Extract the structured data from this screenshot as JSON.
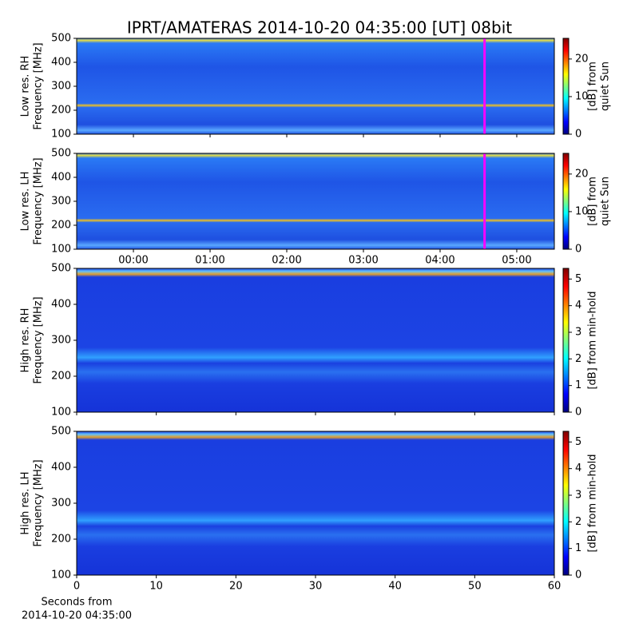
{
  "title": "IPRT/AMATERAS 2014-10-20 04:35:00 [UT]   08bit",
  "chart_data": [
    {
      "type": "spectrogram",
      "ylabel": [
        "Low res. RH",
        "Frequency [MHz]"
      ],
      "ylim": [
        100,
        500
      ],
      "yticks": [
        100,
        200,
        300,
        400,
        500
      ],
      "xlim": [
        -0.74,
        5.49
      ],
      "xticks": [
        {
          "value": 0,
          "label": "00:00"
        },
        {
          "value": 1,
          "label": "01:00"
        },
        {
          "value": 2,
          "label": "02:00"
        },
        {
          "value": 3,
          "label": "03:00"
        },
        {
          "value": 4,
          "label": "04:00"
        },
        {
          "value": 5,
          "label": "05:00"
        }
      ],
      "show_xtick_labels": false,
      "marker_x": 4.58,
      "marker_color": "#ff00ff",
      "colorbar_label": [
        "[dB] from",
        "quiet Sun"
      ],
      "clim": [
        0,
        25.5
      ],
      "cticks": [
        0,
        10,
        20
      ],
      "colormap": "jet"
    },
    {
      "type": "spectrogram",
      "ylabel": [
        "Low res. LH",
        "Frequency [MHz]"
      ],
      "ylim": [
        100,
        500
      ],
      "yticks": [
        100,
        200,
        300,
        400,
        500
      ],
      "xlim": [
        -0.74,
        5.49
      ],
      "xticks": [
        {
          "value": 0,
          "label": "00:00"
        },
        {
          "value": 1,
          "label": "01:00"
        },
        {
          "value": 2,
          "label": "02:00"
        },
        {
          "value": 3,
          "label": "03:00"
        },
        {
          "value": 4,
          "label": "04:00"
        },
        {
          "value": 5,
          "label": "05:00"
        }
      ],
      "show_xtick_labels": true,
      "marker_x": 4.58,
      "marker_color": "#ff00ff",
      "colorbar_label": [
        "[dB] from",
        "quiet Sun"
      ],
      "clim": [
        0,
        25.5
      ],
      "cticks": [
        0,
        10,
        20
      ],
      "colormap": "jet"
    },
    {
      "type": "spectrogram",
      "ylabel": [
        "High res. RH",
        "Frequency [MHz]"
      ],
      "ylim": [
        100,
        500
      ],
      "yticks": [
        100,
        200,
        300,
        400,
        500
      ],
      "xlim": [
        0,
        60
      ],
      "xticks": [
        0,
        10,
        20,
        30,
        40,
        50,
        60
      ],
      "show_xtick_labels": false,
      "colorbar_label": [
        "[dB] from min-hold"
      ],
      "clim": [
        0,
        5.4
      ],
      "cticks": [
        0,
        1,
        2,
        3,
        4,
        5
      ],
      "colormap": "jet"
    },
    {
      "type": "spectrogram",
      "ylabel": [
        "High res. LH",
        "Frequency [MHz]"
      ],
      "ylim": [
        100,
        500
      ],
      "yticks": [
        100,
        200,
        300,
        400,
        500
      ],
      "xlim": [
        0,
        60
      ],
      "xticks": [
        0,
        10,
        20,
        30,
        40,
        50,
        60
      ],
      "show_xtick_labels": true,
      "xlabel": [
        "Seconds from",
        "2014-10-20 04:35:00"
      ],
      "colorbar_label": [
        "[dB] from min-hold"
      ],
      "clim": [
        0,
        5.4
      ],
      "cticks": [
        0,
        1,
        2,
        3,
        4,
        5
      ],
      "colormap": "jet"
    }
  ]
}
